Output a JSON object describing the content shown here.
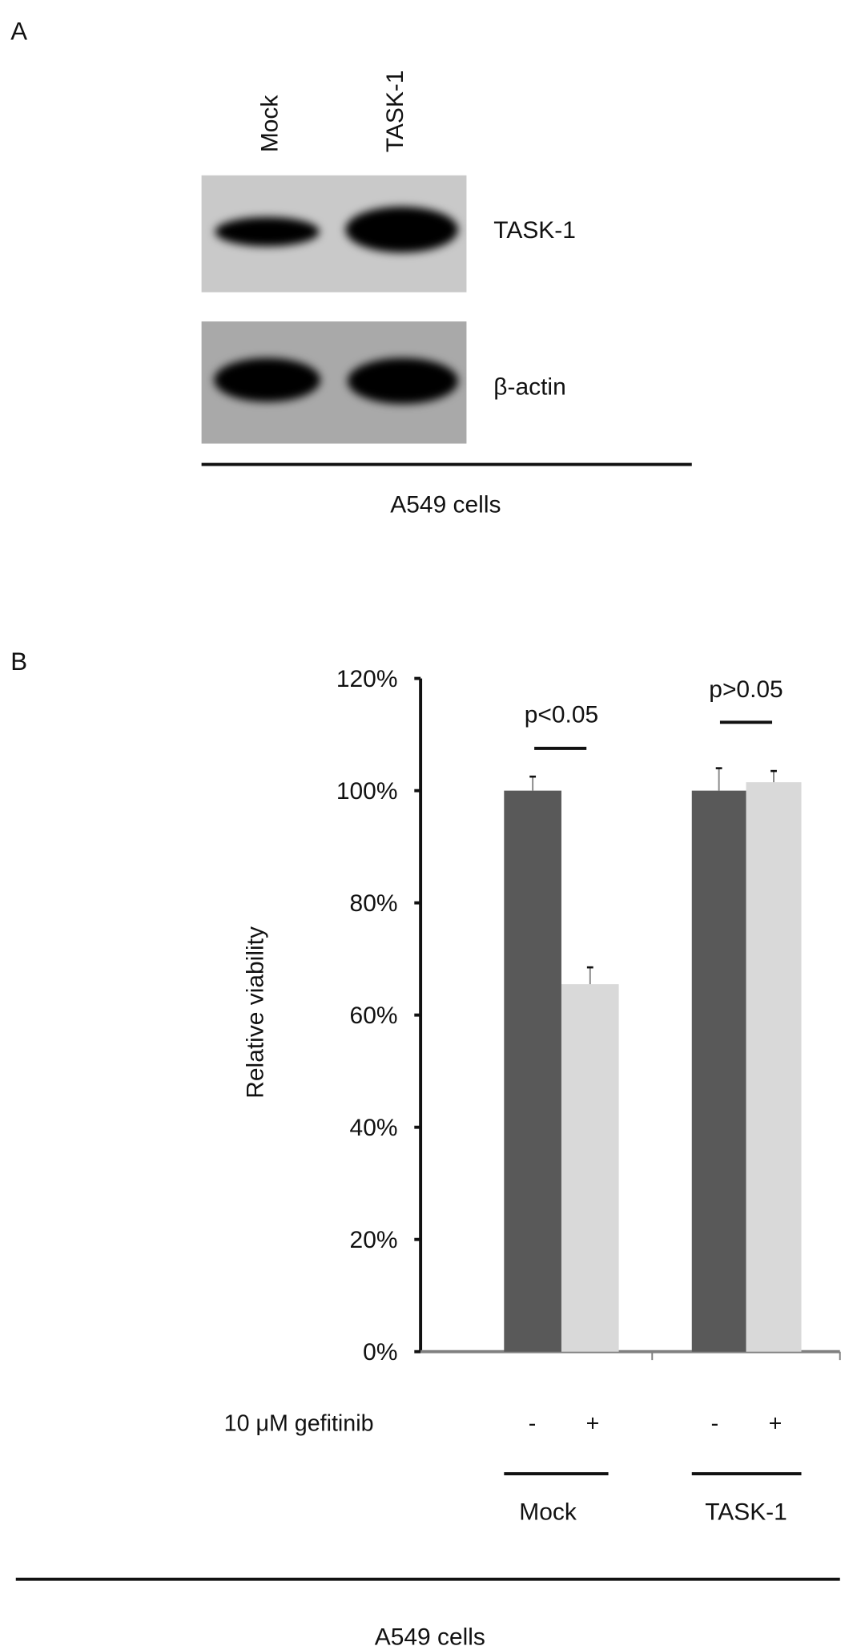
{
  "panel_a": {
    "label": "A",
    "lane_labels": [
      "Mock",
      "TASK-1"
    ],
    "blot_labels": [
      "TASK-1",
      "β-actin"
    ],
    "cell_line": "A549 cells"
  },
  "panel_b": {
    "label": "B",
    "treatment_label": "10 μM gefitinib",
    "treatment_signs": [
      "-",
      "+",
      "-",
      "+"
    ],
    "group_labels": [
      "Mock",
      "TASK-1"
    ],
    "cell_line": "A549 cells",
    "significance": [
      "p<0.05",
      "p>0.05"
    ]
  },
  "chart_data": {
    "type": "bar",
    "title": "",
    "xlabel": "",
    "ylabel": "Relative viability",
    "categories": [
      "Mock",
      "TASK-1"
    ],
    "series": [
      {
        "name": "10 μM gefitinib -",
        "color": "#595959",
        "values": [
          100,
          100
        ],
        "errors": [
          2.5,
          4
        ]
      },
      {
        "name": "10 μM gefitinib +",
        "color": "#d9d9d9",
        "values": [
          65.5,
          101.5
        ],
        "errors": [
          3,
          2
        ]
      }
    ],
    "ylim": [
      0,
      120
    ],
    "yticks": [
      "0%",
      "20%",
      "40%",
      "60%",
      "80%",
      "100%",
      "120%"
    ],
    "grid": false,
    "legend": "none"
  }
}
